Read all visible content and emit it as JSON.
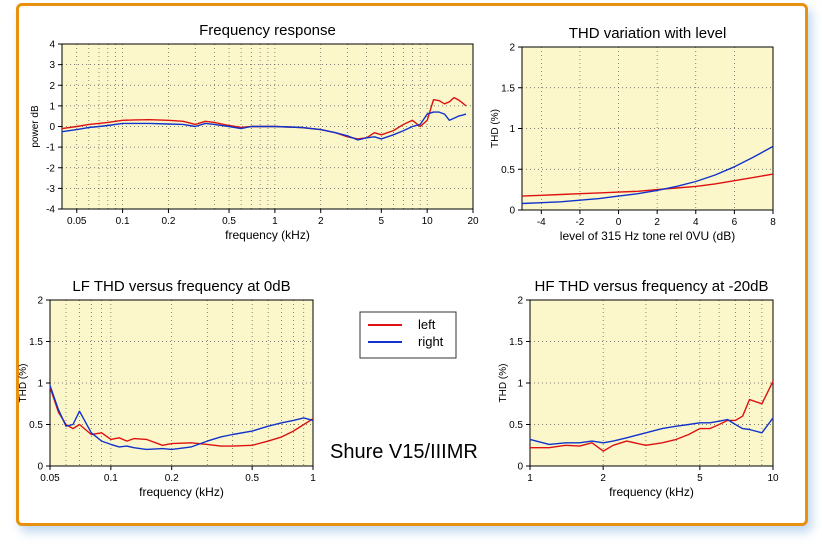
{
  "colors": {
    "left": "#dd1111",
    "right": "#1133cc",
    "plot_bg": "#fbf7cb",
    "frame": "#e8900f"
  },
  "legend": {
    "left_label": "left",
    "right_label": "right"
  },
  "caption": "Shure V15/IIIMR",
  "chart_data": [
    {
      "id": "freq",
      "type": "line",
      "title": "Frequency response",
      "xlabel": "frequency (kHz)",
      "ylabel": "power dB",
      "xscale": "log",
      "xlim": [
        0.04,
        20
      ],
      "ylim": [
        -4,
        4
      ],
      "xticks": [
        0.05,
        0.1,
        0.2,
        0.5,
        1,
        2,
        5,
        10,
        20
      ],
      "xtick_labels": [
        "0.05",
        "0.1",
        "0.2",
        "0.5",
        "1",
        "2",
        "5",
        "10",
        "20"
      ],
      "yticks": [
        -4,
        -3,
        -2,
        -1,
        0,
        1,
        2,
        3,
        4
      ],
      "ytick_labels": [
        "-4",
        "-3",
        "-2",
        "-1",
        "0",
        "1",
        "2",
        "3",
        "4"
      ],
      "grid": true,
      "series": [
        {
          "name": "left",
          "x": [
            0.04,
            0.05,
            0.06,
            0.07,
            0.08,
            0.1,
            0.12,
            0.15,
            0.2,
            0.25,
            0.3,
            0.35,
            0.4,
            0.5,
            0.6,
            0.7,
            0.8,
            1,
            1.5,
            2,
            2.5,
            3,
            3.5,
            4,
            4.5,
            5,
            6,
            7,
            8,
            9,
            10,
            11,
            12,
            13,
            14,
            15,
            16,
            17,
            18
          ],
          "y": [
            -0.1,
            0.0,
            0.1,
            0.15,
            0.2,
            0.3,
            0.32,
            0.33,
            0.3,
            0.25,
            0.1,
            0.25,
            0.2,
            0.05,
            -0.05,
            0.0,
            0.0,
            0.0,
            -0.05,
            -0.15,
            -0.3,
            -0.5,
            -0.6,
            -0.55,
            -0.3,
            -0.4,
            -0.2,
            0.1,
            0.3,
            0.0,
            0.3,
            1.3,
            1.25,
            1.1,
            1.2,
            1.4,
            1.3,
            1.15,
            1.0
          ]
        },
        {
          "name": "right",
          "x": [
            0.04,
            0.05,
            0.06,
            0.07,
            0.08,
            0.1,
            0.12,
            0.15,
            0.2,
            0.25,
            0.3,
            0.35,
            0.4,
            0.5,
            0.6,
            0.7,
            0.8,
            1,
            1.5,
            2,
            2.5,
            3,
            3.5,
            4,
            4.5,
            5,
            6,
            7,
            8,
            9,
            10,
            11,
            12,
            13,
            14,
            15,
            16,
            17,
            18
          ],
          "y": [
            -0.25,
            -0.15,
            -0.05,
            0.0,
            0.05,
            0.15,
            0.15,
            0.15,
            0.12,
            0.1,
            0.0,
            0.15,
            0.1,
            0.0,
            -0.1,
            0.0,
            0.0,
            0.0,
            -0.05,
            -0.15,
            -0.3,
            -0.45,
            -0.65,
            -0.55,
            -0.5,
            -0.6,
            -0.4,
            -0.2,
            0.0,
            0.1,
            0.6,
            0.7,
            0.7,
            0.6,
            0.3,
            0.4,
            0.5,
            0.55,
            0.6
          ]
        }
      ]
    },
    {
      "id": "thdlevel",
      "type": "line",
      "title": "THD variation with level",
      "xlabel": "level of 315 Hz tone rel 0VU (dB)",
      "ylabel": "THD (%)",
      "xscale": "linear",
      "xlim": [
        -5,
        8
      ],
      "ylim": [
        0,
        2
      ],
      "xticks": [
        -4,
        -2,
        0,
        2,
        4,
        6,
        8
      ],
      "xtick_labels": [
        "-4",
        "-2",
        "0",
        "2",
        "4",
        "6",
        "8"
      ],
      "yticks": [
        0,
        0.5,
        1,
        1.5,
        2
      ],
      "ytick_labels": [
        "0",
        "0.5",
        "1",
        "1.5",
        "2"
      ],
      "grid": true,
      "series": [
        {
          "name": "left",
          "x": [
            -5,
            -4,
            -3,
            -2,
            -1,
            0,
            1,
            2,
            3,
            4,
            5,
            6,
            7,
            8
          ],
          "y": [
            0.17,
            0.18,
            0.19,
            0.2,
            0.21,
            0.22,
            0.23,
            0.25,
            0.27,
            0.29,
            0.32,
            0.36,
            0.4,
            0.44
          ]
        },
        {
          "name": "right",
          "x": [
            -5,
            -4,
            -3,
            -2,
            -1,
            0,
            1,
            2,
            3,
            4,
            5,
            6,
            7,
            8
          ],
          "y": [
            0.08,
            0.09,
            0.1,
            0.12,
            0.14,
            0.17,
            0.2,
            0.24,
            0.29,
            0.35,
            0.43,
            0.53,
            0.65,
            0.78
          ]
        }
      ]
    },
    {
      "id": "lfthd",
      "type": "line",
      "title": "LF THD versus frequency at 0dB",
      "xlabel": "frequency (kHz)",
      "ylabel": "THD (%)",
      "xscale": "log",
      "xlim": [
        0.05,
        1
      ],
      "ylim": [
        0,
        2
      ],
      "xticks": [
        0.05,
        0.1,
        0.2,
        0.5,
        1
      ],
      "xtick_labels": [
        "0.05",
        "0.1",
        "0.2",
        "0.5",
        "1"
      ],
      "yticks": [
        0,
        0.5,
        1,
        1.5,
        2
      ],
      "ytick_labels": [
        "0",
        "0.5",
        "1",
        "1.5",
        "2"
      ],
      "grid": true,
      "series": [
        {
          "name": "left",
          "x": [
            0.05,
            0.055,
            0.06,
            0.065,
            0.07,
            0.08,
            0.09,
            0.1,
            0.11,
            0.12,
            0.13,
            0.15,
            0.18,
            0.2,
            0.25,
            0.3,
            0.35,
            0.4,
            0.5,
            0.6,
            0.7,
            0.8,
            0.9,
            1
          ],
          "y": [
            0.95,
            0.65,
            0.5,
            0.45,
            0.5,
            0.38,
            0.4,
            0.32,
            0.34,
            0.3,
            0.33,
            0.32,
            0.25,
            0.27,
            0.28,
            0.26,
            0.24,
            0.24,
            0.25,
            0.3,
            0.35,
            0.42,
            0.5,
            0.57
          ]
        },
        {
          "name": "right",
          "x": [
            0.05,
            0.055,
            0.06,
            0.065,
            0.07,
            0.08,
            0.09,
            0.1,
            0.11,
            0.12,
            0.13,
            0.15,
            0.18,
            0.2,
            0.25,
            0.3,
            0.35,
            0.4,
            0.5,
            0.6,
            0.7,
            0.8,
            0.9,
            1
          ],
          "y": [
            0.97,
            0.68,
            0.48,
            0.5,
            0.66,
            0.4,
            0.3,
            0.26,
            0.23,
            0.24,
            0.22,
            0.2,
            0.21,
            0.2,
            0.23,
            0.3,
            0.35,
            0.38,
            0.42,
            0.48,
            0.52,
            0.55,
            0.58,
            0.55
          ]
        }
      ]
    },
    {
      "id": "hfthd",
      "type": "line",
      "title": "HF THD versus frequency at -20dB",
      "xlabel": "frequency (kHz)",
      "ylabel": "THD (%)",
      "xscale": "log",
      "xlim": [
        1,
        10
      ],
      "ylim": [
        0,
        2
      ],
      "xticks": [
        1,
        2,
        5,
        10
      ],
      "xtick_labels": [
        "1",
        "2",
        "5",
        "10"
      ],
      "yticks": [
        0,
        0.5,
        1,
        1.5,
        2
      ],
      "ytick_labels": [
        "0",
        "0.5",
        "1",
        "1.5",
        "2"
      ],
      "grid": true,
      "series": [
        {
          "name": "left",
          "x": [
            1,
            1.2,
            1.4,
            1.6,
            1.8,
            2,
            2.2,
            2.5,
            3,
            3.5,
            4,
            4.5,
            5,
            5.5,
            6,
            6.5,
            7,
            7.5,
            8,
            9,
            10
          ],
          "y": [
            0.22,
            0.22,
            0.25,
            0.24,
            0.28,
            0.18,
            0.25,
            0.3,
            0.25,
            0.28,
            0.32,
            0.38,
            0.45,
            0.45,
            0.5,
            0.55,
            0.55,
            0.6,
            0.8,
            0.75,
            1.02
          ]
        },
        {
          "name": "right",
          "x": [
            1,
            1.2,
            1.4,
            1.6,
            1.8,
            2,
            2.2,
            2.5,
            3,
            3.5,
            4,
            4.5,
            5,
            5.5,
            6,
            6.5,
            7,
            7.5,
            8,
            9,
            10
          ],
          "y": [
            0.32,
            0.26,
            0.28,
            0.28,
            0.3,
            0.28,
            0.3,
            0.34,
            0.4,
            0.45,
            0.48,
            0.5,
            0.52,
            0.52,
            0.54,
            0.56,
            0.5,
            0.45,
            0.44,
            0.4,
            0.58
          ]
        }
      ]
    }
  ]
}
